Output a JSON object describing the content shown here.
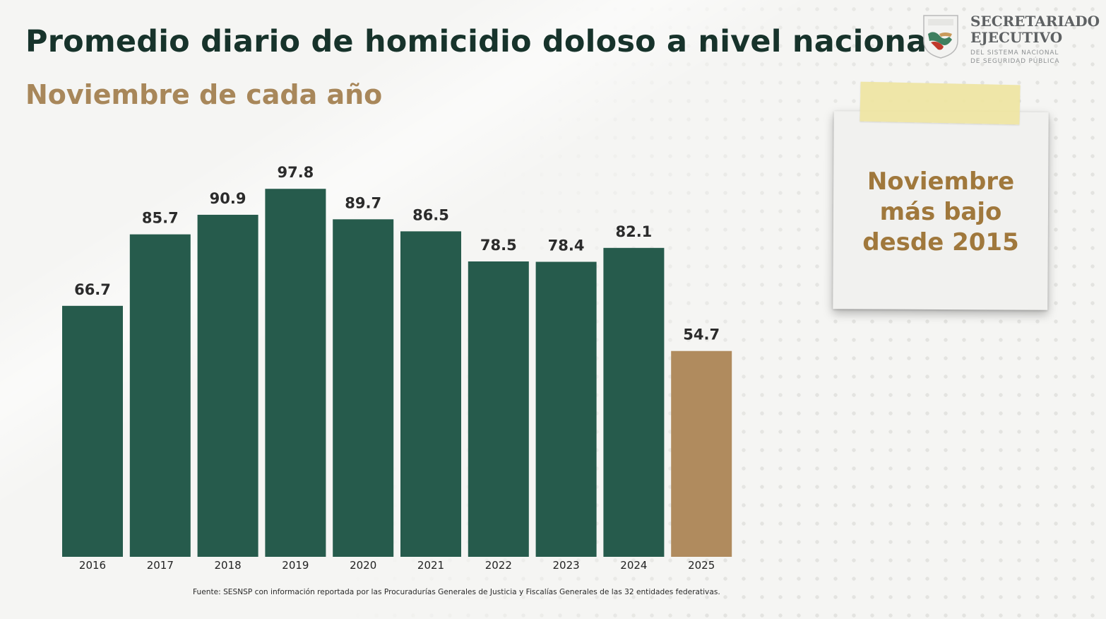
{
  "header": {
    "title": "Promedio diario de homicidio doloso a nivel nacional",
    "subtitle": "Noviembre de cada año"
  },
  "logo": {
    "line1": "SECRETARIADO",
    "line2": "EJECUTIVO",
    "line3": "DEL SISTEMA NACIONAL",
    "line4": "DE SEGURIDAD PÚBLICA"
  },
  "note": {
    "line1": "Noviembre",
    "line2": "más bajo",
    "line3": "desde 2015"
  },
  "footnote": "Fuente: SESNSP con información reportada por las Procuradurías Generales de Justicia y Fiscalías Generales de las 32 entidades federativas.",
  "colors": {
    "bar": "#265b4c",
    "highlight": "#b08b5e",
    "title": "#17332b",
    "subtitle": "#a8875a"
  },
  "chart_data": {
    "type": "bar",
    "categories": [
      "2016",
      "2017",
      "2018",
      "2019",
      "2020",
      "2021",
      "2022",
      "2023",
      "2024",
      "2025"
    ],
    "values": [
      66.7,
      85.7,
      90.9,
      97.8,
      89.7,
      86.5,
      78.5,
      78.4,
      82.1,
      54.7
    ],
    "title": "Promedio diario de homicidio doloso a nivel nacional",
    "subtitle": "Noviembre de cada año",
    "highlight_category": "2025",
    "ylim": [
      0,
      100
    ],
    "grid": false,
    "legend": "none"
  }
}
